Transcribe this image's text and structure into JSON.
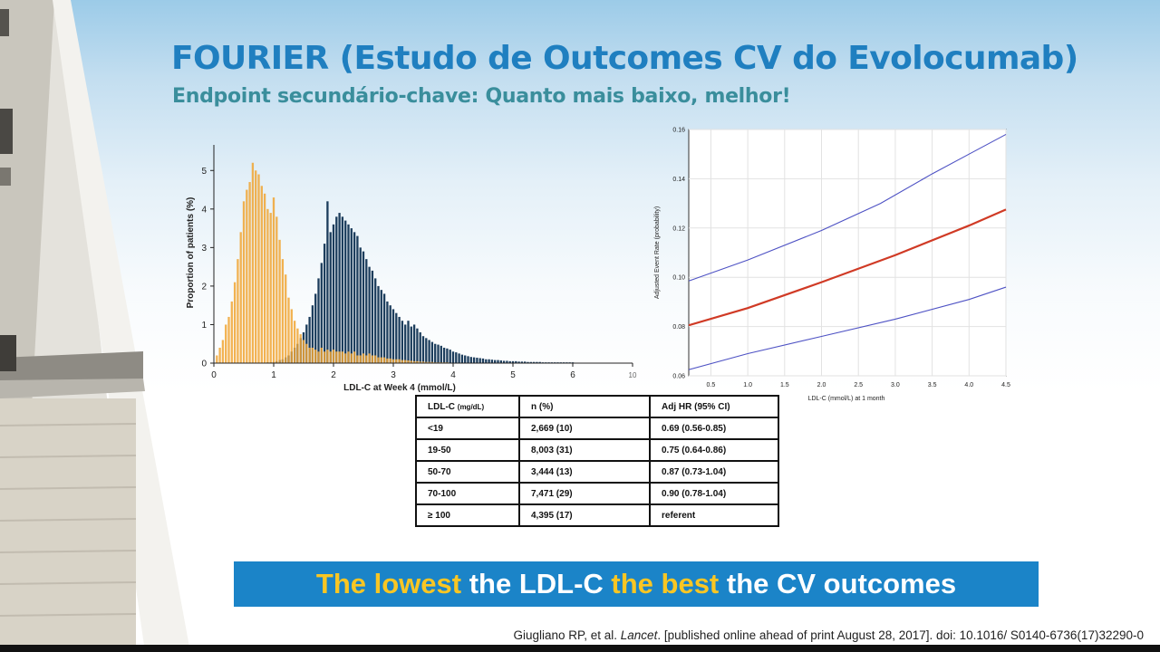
{
  "slide": {
    "title": "FOURIER (Estudo de Outcomes CV do Evolocumab)",
    "subtitle": "Endpoint secundário-chave: Quanto mais baixo, melhor!",
    "banner": {
      "part1": "The lowest",
      "part2": " the LDL-C ",
      "part3": "the best",
      "part4": " the CV outcomes"
    },
    "citation": {
      "authors": "Giugliano RP, et al. ",
      "journal": "Lancet",
      "rest": ". [published online ahead of print August 28, 2017]. doi: 10.1016/ S0140-6736(17)32290-0"
    },
    "colors": {
      "title": "#1f7fc0",
      "subtitle": "#3a8e9c",
      "banner_bg": "#1b84c8",
      "banner_highlight": "#f9c623",
      "evolocumab": "#f0a533",
      "placebo": "#1c3d5c",
      "estimate_line": "#d03a25",
      "ci_lines": "#4e52c4"
    }
  },
  "table": {
    "headers": [
      "LDL-C",
      "(mg/dL)",
      "n (%)",
      "Adj HR (95% CI)"
    ],
    "rows": [
      [
        "<19",
        "2,669 (10)",
        "0.69 (0.56-0.85)"
      ],
      [
        "19-50",
        "8,003 (31)",
        "0.75 (0.64-0.86)"
      ],
      [
        "50-70",
        "3,444 (13)",
        "0.87 (0.73-1.04)"
      ],
      [
        "70-100",
        "7,471 (29)",
        "0.90 (0.78-1.04)"
      ],
      [
        "≥ 100",
        "4,395 (17)",
        "referent"
      ]
    ]
  },
  "chart_data": [
    {
      "type": "bar",
      "title": "",
      "xlabel": "LDL-C at Week 4 (mmol/L)",
      "ylabel": "Proportion of patients (%)",
      "xlim": [
        0,
        7
      ],
      "ylim": [
        0,
        5.5
      ],
      "x_ticks": [
        "0",
        "1",
        "2",
        "3",
        "4",
        "5",
        "6",
        "10"
      ],
      "y_ticks": [
        "0",
        "1",
        "2",
        "3",
        "4",
        "5"
      ],
      "bin_width": 0.05,
      "series": [
        {
          "color": "orange",
          "values": [
            [
              0.05,
              0.2
            ],
            [
              0.1,
              0.4
            ],
            [
              0.15,
              0.6
            ],
            [
              0.2,
              1.0
            ],
            [
              0.25,
              1.2
            ],
            [
              0.3,
              1.6
            ],
            [
              0.35,
              2.1
            ],
            [
              0.4,
              2.7
            ],
            [
              0.45,
              3.4
            ],
            [
              0.5,
              4.2
            ],
            [
              0.55,
              4.5
            ],
            [
              0.6,
              4.7
            ],
            [
              0.65,
              5.2
            ],
            [
              0.7,
              5.0
            ],
            [
              0.75,
              4.9
            ],
            [
              0.8,
              4.6
            ],
            [
              0.85,
              4.4
            ],
            [
              0.9,
              4.0
            ],
            [
              0.95,
              3.9
            ],
            [
              1.0,
              4.3
            ],
            [
              1.05,
              3.8
            ],
            [
              1.1,
              3.2
            ],
            [
              1.15,
              2.7
            ],
            [
              1.2,
              2.3
            ],
            [
              1.25,
              1.7
            ],
            [
              1.3,
              1.4
            ],
            [
              1.35,
              1.1
            ],
            [
              1.4,
              0.9
            ],
            [
              1.45,
              0.75
            ],
            [
              1.5,
              0.6
            ],
            [
              1.55,
              0.5
            ],
            [
              1.6,
              0.4
            ],
            [
              1.65,
              0.4
            ],
            [
              1.7,
              0.35
            ],
            [
              1.75,
              0.3
            ],
            [
              1.8,
              0.4
            ],
            [
              1.85,
              0.3
            ],
            [
              1.9,
              0.35
            ],
            [
              1.95,
              0.3
            ],
            [
              2.0,
              0.35
            ],
            [
              2.05,
              0.3
            ],
            [
              2.1,
              0.3
            ],
            [
              2.15,
              0.3
            ],
            [
              2.2,
              0.25
            ],
            [
              2.25,
              0.3
            ],
            [
              2.3,
              0.25
            ],
            [
              2.35,
              0.3
            ],
            [
              2.4,
              0.2
            ],
            [
              2.45,
              0.2
            ],
            [
              2.5,
              0.25
            ],
            [
              2.55,
              0.2
            ],
            [
              2.6,
              0.25
            ],
            [
              2.65,
              0.2
            ],
            [
              2.7,
              0.2
            ],
            [
              2.75,
              0.15
            ],
            [
              2.8,
              0.15
            ],
            [
              2.85,
              0.15
            ],
            [
              2.9,
              0.12
            ],
            [
              2.95,
              0.12
            ],
            [
              3.0,
              0.1
            ],
            [
              3.05,
              0.1
            ],
            [
              3.1,
              0.1
            ],
            [
              3.15,
              0.08
            ],
            [
              3.2,
              0.08
            ],
            [
              3.25,
              0.07
            ],
            [
              3.3,
              0.06
            ],
            [
              3.35,
              0.05
            ],
            [
              3.4,
              0.05
            ],
            [
              3.45,
              0.04
            ],
            [
              3.5,
              0.04
            ],
            [
              3.55,
              0.03
            ],
            [
              3.6,
              0.03
            ],
            [
              3.65,
              0.03
            ],
            [
              3.7,
              0.02
            ],
            [
              3.75,
              0.02
            ],
            [
              3.8,
              0.02
            ],
            [
              3.85,
              0.02
            ],
            [
              3.9,
              0.02
            ],
            [
              3.95,
              0.01
            ],
            [
              4.0,
              0.01
            ]
          ]
        },
        {
          "color": "dark-blue",
          "values": [
            [
              0.9,
              0.02
            ],
            [
              0.95,
              0.02
            ],
            [
              1.0,
              0.03
            ],
            [
              1.05,
              0.05
            ],
            [
              1.1,
              0.08
            ],
            [
              1.15,
              0.1
            ],
            [
              1.2,
              0.15
            ],
            [
              1.25,
              0.2
            ],
            [
              1.3,
              0.3
            ],
            [
              1.35,
              0.4
            ],
            [
              1.4,
              0.5
            ],
            [
              1.45,
              0.65
            ],
            [
              1.5,
              0.8
            ],
            [
              1.55,
              1.0
            ],
            [
              1.6,
              1.2
            ],
            [
              1.65,
              1.5
            ],
            [
              1.7,
              1.8
            ],
            [
              1.75,
              2.2
            ],
            [
              1.8,
              2.6
            ],
            [
              1.85,
              3.1
            ],
            [
              1.9,
              4.2
            ],
            [
              1.95,
              3.4
            ],
            [
              2.0,
              3.6
            ],
            [
              2.05,
              3.8
            ],
            [
              2.1,
              3.9
            ],
            [
              2.15,
              3.8
            ],
            [
              2.2,
              3.7
            ],
            [
              2.25,
              3.6
            ],
            [
              2.3,
              3.5
            ],
            [
              2.35,
              3.4
            ],
            [
              2.4,
              3.3
            ],
            [
              2.45,
              3.0
            ],
            [
              2.5,
              2.9
            ],
            [
              2.55,
              2.7
            ],
            [
              2.6,
              2.5
            ],
            [
              2.65,
              2.4
            ],
            [
              2.7,
              2.2
            ],
            [
              2.75,
              2.0
            ],
            [
              2.8,
              1.9
            ],
            [
              2.85,
              1.8
            ],
            [
              2.9,
              1.6
            ],
            [
              2.95,
              1.5
            ],
            [
              3.0,
              1.4
            ],
            [
              3.05,
              1.3
            ],
            [
              3.1,
              1.2
            ],
            [
              3.15,
              1.1
            ],
            [
              3.2,
              1.0
            ],
            [
              3.25,
              1.1
            ],
            [
              3.3,
              0.95
            ],
            [
              3.35,
              1.0
            ],
            [
              3.4,
              0.9
            ],
            [
              3.45,
              0.8
            ],
            [
              3.5,
              0.7
            ],
            [
              3.55,
              0.65
            ],
            [
              3.6,
              0.6
            ],
            [
              3.65,
              0.55
            ],
            [
              3.7,
              0.5
            ],
            [
              3.75,
              0.48
            ],
            [
              3.8,
              0.45
            ],
            [
              3.85,
              0.4
            ],
            [
              3.9,
              0.38
            ],
            [
              3.95,
              0.35
            ],
            [
              4.0,
              0.3
            ],
            [
              4.05,
              0.28
            ],
            [
              4.1,
              0.25
            ],
            [
              4.15,
              0.22
            ],
            [
              4.2,
              0.2
            ],
            [
              4.25,
              0.18
            ],
            [
              4.3,
              0.16
            ],
            [
              4.35,
              0.15
            ],
            [
              4.4,
              0.14
            ],
            [
              4.45,
              0.13
            ],
            [
              4.5,
              0.12
            ],
            [
              4.55,
              0.1
            ],
            [
              4.6,
              0.1
            ],
            [
              4.65,
              0.09
            ],
            [
              4.7,
              0.08
            ],
            [
              4.75,
              0.08
            ],
            [
              4.8,
              0.07
            ],
            [
              4.85,
              0.06
            ],
            [
              4.9,
              0.06
            ],
            [
              4.95,
              0.05
            ],
            [
              5.0,
              0.05
            ],
            [
              5.05,
              0.05
            ],
            [
              5.1,
              0.04
            ],
            [
              5.15,
              0.04
            ],
            [
              5.2,
              0.04
            ],
            [
              5.25,
              0.03
            ],
            [
              5.3,
              0.03
            ],
            [
              5.35,
              0.03
            ],
            [
              5.4,
              0.03
            ],
            [
              5.45,
              0.03
            ],
            [
              5.5,
              0.02
            ],
            [
              5.55,
              0.02
            ],
            [
              5.6,
              0.02
            ],
            [
              5.65,
              0.02
            ],
            [
              5.7,
              0.02
            ],
            [
              5.75,
              0.02
            ],
            [
              5.8,
              0.02
            ],
            [
              5.85,
              0.02
            ],
            [
              5.9,
              0.02
            ],
            [
              5.95,
              0.02
            ],
            [
              6.0,
              0.02
            ],
            [
              6.1,
              0.01
            ],
            [
              6.2,
              0.01
            ],
            [
              6.3,
              0.01
            ],
            [
              6.4,
              0.01
            ],
            [
              6.5,
              0.01
            ],
            [
              6.6,
              0.01
            ],
            [
              6.7,
              0.01
            ]
          ]
        }
      ]
    },
    {
      "type": "line",
      "title": "",
      "xlabel": "LDL-C (mmol/L) at 1 month",
      "ylabel": "Adjusted Event Rate (probability)",
      "xlim": [
        0.2,
        4.5
      ],
      "ylim": [
        0.06,
        0.16
      ],
      "x_ticks": [
        "0.5",
        "1.0",
        "1.5",
        "2.0",
        "2.5",
        "3.0",
        "3.5",
        "4.0",
        "4.5"
      ],
      "y_ticks": [
        "0.06",
        "0.08",
        "0.10",
        "0.12",
        "0.14",
        "0.16"
      ],
      "grid": true,
      "series": [
        {
          "color": "red",
          "role": "estimate",
          "x": [
            0.2,
            1.0,
            2.0,
            3.0,
            4.0,
            4.5
          ],
          "y": [
            0.0805,
            0.0875,
            0.098,
            0.109,
            0.121,
            0.1275
          ]
        },
        {
          "color": "blue",
          "role": "upper-ci",
          "x": [
            0.2,
            1.0,
            2.0,
            2.8,
            3.5,
            4.0,
            4.5
          ],
          "y": [
            0.0985,
            0.107,
            0.119,
            0.13,
            0.142,
            0.15,
            0.158
          ]
        },
        {
          "color": "blue",
          "role": "lower-ci",
          "x": [
            0.2,
            1.0,
            2.0,
            3.0,
            4.0,
            4.5
          ],
          "y": [
            0.0625,
            0.069,
            0.076,
            0.083,
            0.091,
            0.096
          ]
        }
      ]
    }
  ]
}
